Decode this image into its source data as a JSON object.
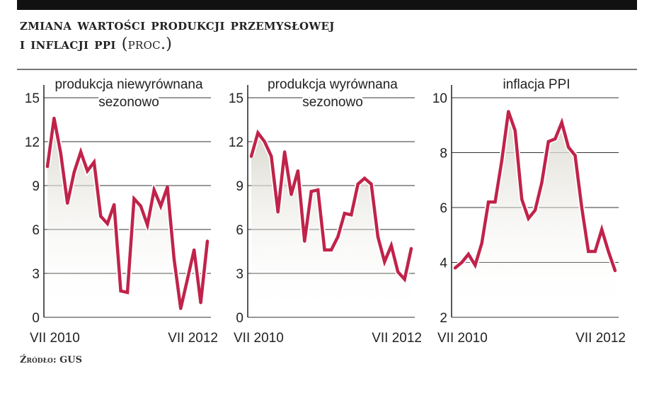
{
  "header": {
    "title_line1": "Zmiana wartości produkcji przemysłowej",
    "title_line2": "i inflacji PPI",
    "title_unit": "(proc.)"
  },
  "source": "Źródło: GUS",
  "colors": {
    "line": "#c0234a",
    "fill_top": "#d8d6cc",
    "grid": "#333333"
  },
  "chart_data": [
    {
      "type": "area",
      "title_lines": [
        "produkcja niewyrównana",
        "sezonowo"
      ],
      "x_tick_labels": [
        "VII 2010",
        "VII 2012"
      ],
      "ylim": [
        0,
        15
      ],
      "yticks": [
        0,
        3,
        6,
        9,
        12,
        15
      ],
      "grid": true,
      "values": [
        10.3,
        13.6,
        11.2,
        7.8,
        9.9,
        11.3,
        10.0,
        10.6,
        6.9,
        6.4,
        7.7,
        1.8,
        1.7,
        8.1,
        7.6,
        6.3,
        8.7,
        7.6,
        8.9,
        4.0,
        0.6,
        2.6,
        4.6,
        1.0,
        5.2
      ]
    },
    {
      "type": "area",
      "title_lines": [
        "produkcja wyrównana",
        "sezonowo"
      ],
      "x_tick_labels": [
        "VII 2010",
        "VII 2012"
      ],
      "ylim": [
        0,
        15
      ],
      "yticks": [
        0,
        3,
        6,
        9,
        12,
        15
      ],
      "grid": true,
      "values": [
        11.0,
        12.6,
        12.0,
        11.0,
        7.2,
        11.3,
        8.4,
        10.0,
        5.2,
        8.6,
        8.7,
        4.6,
        4.6,
        5.5,
        7.1,
        7.0,
        9.1,
        9.5,
        9.1,
        5.5,
        3.8,
        4.9,
        3.1,
        2.6,
        4.7
      ]
    },
    {
      "type": "area",
      "title_lines": [
        "inflacja PPI"
      ],
      "x_tick_labels": [
        "VII 2010",
        "VII 2012"
      ],
      "ylim": [
        2,
        10
      ],
      "yticks": [
        2,
        4,
        6,
        8,
        10
      ],
      "grid": true,
      "values": [
        3.8,
        4.0,
        4.3,
        3.9,
        4.7,
        6.2,
        6.2,
        7.7,
        9.5,
        8.8,
        6.3,
        5.6,
        5.9,
        6.9,
        8.4,
        8.5,
        9.1,
        8.2,
        7.9,
        6.0,
        4.4,
        4.4,
        5.2,
        4.4,
        3.7
      ]
    }
  ]
}
